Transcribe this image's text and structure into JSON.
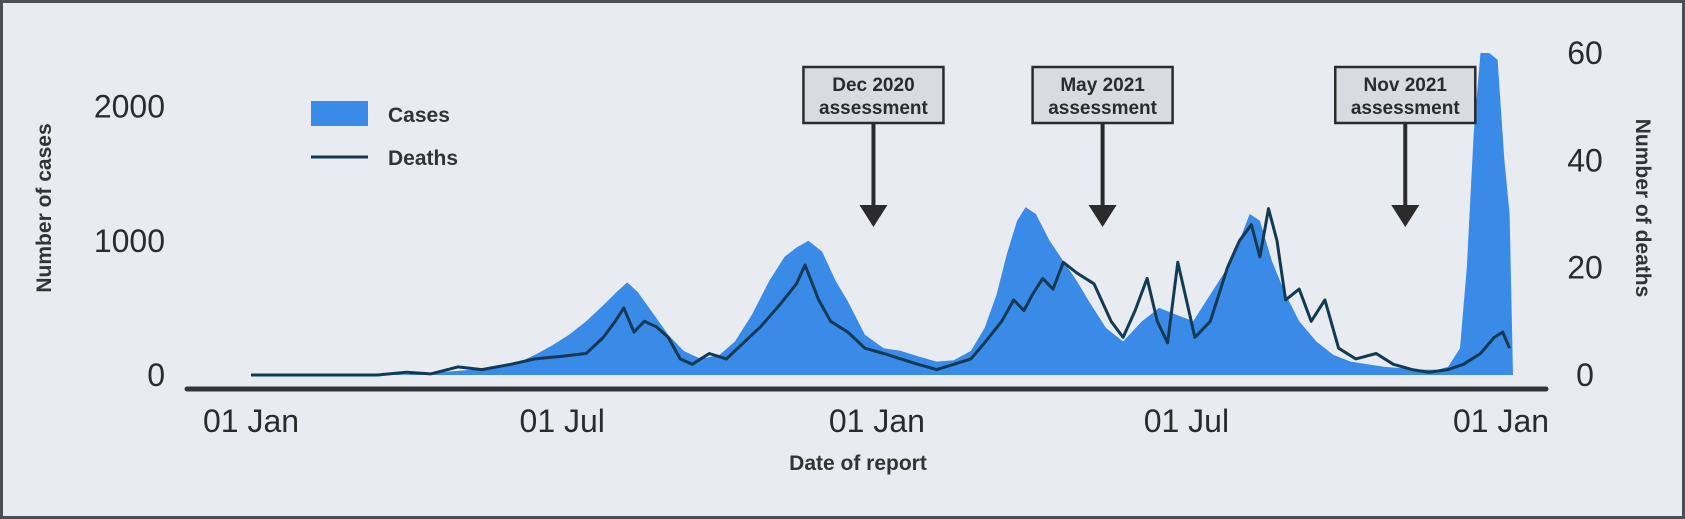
{
  "chart_data": {
    "type": "area",
    "xlabel": "Date of report",
    "ylabel": "Number of cases",
    "y2label": "Number of deaths",
    "x_range": [
      "2020-01-01",
      "2022-01-08"
    ],
    "x_ticks": [
      {
        "date": "2020-01-01",
        "label": "01 Jan"
      },
      {
        "date": "2020-07-01",
        "label": "01 Jul"
      },
      {
        "date": "2021-01-01",
        "label": "01 Jan"
      },
      {
        "date": "2021-07-01",
        "label": "01 Jul"
      },
      {
        "date": "2022-01-01",
        "label": "01 Jan"
      }
    ],
    "ylim": [
      0,
      2400
    ],
    "y_ticks": [
      0,
      1000,
      2000
    ],
    "y2lim": [
      0,
      60
    ],
    "y2_ticks": [
      0,
      20,
      40,
      60
    ],
    "grid": false,
    "legend_position": "top-left",
    "colors": {
      "cases": "#3a8ae8",
      "deaths": "#123a52",
      "annotation_box": "#d8dce0",
      "axis": "#2f3640"
    },
    "series": [
      {
        "name": "Cases",
        "axis": "left",
        "style": "area",
        "points": [
          [
            "2020-01-01",
            0
          ],
          [
            "2020-03-15",
            0
          ],
          [
            "2020-04-01",
            5
          ],
          [
            "2020-04-20",
            20
          ],
          [
            "2020-05-10",
            40
          ],
          [
            "2020-05-25",
            60
          ],
          [
            "2020-06-05",
            90
          ],
          [
            "2020-06-15",
            150
          ],
          [
            "2020-06-25",
            220
          ],
          [
            "2020-07-05",
            300
          ],
          [
            "2020-07-15",
            400
          ],
          [
            "2020-07-25",
            520
          ],
          [
            "2020-08-02",
            620
          ],
          [
            "2020-08-08",
            690
          ],
          [
            "2020-08-14",
            620
          ],
          [
            "2020-08-22",
            480
          ],
          [
            "2020-09-01",
            300
          ],
          [
            "2020-09-10",
            180
          ],
          [
            "2020-09-20",
            120
          ],
          [
            "2020-10-01",
            150
          ],
          [
            "2020-10-10",
            250
          ],
          [
            "2020-10-20",
            450
          ],
          [
            "2020-10-30",
            700
          ],
          [
            "2020-11-08",
            880
          ],
          [
            "2020-11-15",
            950
          ],
          [
            "2020-11-22",
            1000
          ],
          [
            "2020-11-30",
            920
          ],
          [
            "2020-12-08",
            700
          ],
          [
            "2020-12-15",
            550
          ],
          [
            "2020-12-25",
            300
          ],
          [
            "2021-01-05",
            200
          ],
          [
            "2021-01-15",
            180
          ],
          [
            "2021-01-25",
            140
          ],
          [
            "2021-02-05",
            100
          ],
          [
            "2021-02-15",
            110
          ],
          [
            "2021-02-25",
            180
          ],
          [
            "2021-03-05",
            350
          ],
          [
            "2021-03-12",
            600
          ],
          [
            "2021-03-18",
            900
          ],
          [
            "2021-03-24",
            1150
          ],
          [
            "2021-03-29",
            1250
          ],
          [
            "2021-04-04",
            1200
          ],
          [
            "2021-04-12",
            1000
          ],
          [
            "2021-04-20",
            850
          ],
          [
            "2021-04-28",
            700
          ],
          [
            "2021-05-05",
            550
          ],
          [
            "2021-05-15",
            350
          ],
          [
            "2021-05-25",
            250
          ],
          [
            "2021-06-05",
            400
          ],
          [
            "2021-06-15",
            500
          ],
          [
            "2021-06-25",
            450
          ],
          [
            "2021-07-05",
            400
          ],
          [
            "2021-07-15",
            600
          ],
          [
            "2021-07-25",
            800
          ],
          [
            "2021-08-01",
            1000
          ],
          [
            "2021-08-07",
            1200
          ],
          [
            "2021-08-13",
            1150
          ],
          [
            "2021-08-20",
            850
          ],
          [
            "2021-08-28",
            600
          ],
          [
            "2021-09-05",
            400
          ],
          [
            "2021-09-15",
            250
          ],
          [
            "2021-09-25",
            150
          ],
          [
            "2021-10-05",
            100
          ],
          [
            "2021-10-15",
            80
          ],
          [
            "2021-10-25",
            60
          ],
          [
            "2021-11-05",
            50
          ],
          [
            "2021-11-15",
            40
          ],
          [
            "2021-11-25",
            40
          ],
          [
            "2021-12-01",
            60
          ],
          [
            "2021-12-08",
            200
          ],
          [
            "2021-12-12",
            800
          ],
          [
            "2021-12-16",
            1800
          ],
          [
            "2021-12-20",
            2400
          ],
          [
            "2021-12-25",
            2400
          ],
          [
            "2021-12-30",
            2350
          ],
          [
            "2022-01-03",
            1600
          ],
          [
            "2022-01-06",
            1200
          ],
          [
            "2022-01-08",
            0
          ]
        ]
      },
      {
        "name": "Deaths",
        "axis": "right",
        "style": "line",
        "points": [
          [
            "2020-01-01",
            0
          ],
          [
            "2020-03-15",
            0
          ],
          [
            "2020-04-01",
            0.5
          ],
          [
            "2020-04-15",
            0.2
          ],
          [
            "2020-05-01",
            1.5
          ],
          [
            "2020-05-15",
            1
          ],
          [
            "2020-06-01",
            2
          ],
          [
            "2020-06-15",
            3
          ],
          [
            "2020-07-01",
            3.5
          ],
          [
            "2020-07-15",
            4
          ],
          [
            "2020-07-25",
            7
          ],
          [
            "2020-08-01",
            10
          ],
          [
            "2020-08-06",
            12.5
          ],
          [
            "2020-08-12",
            8
          ],
          [
            "2020-08-18",
            10
          ],
          [
            "2020-08-25",
            9
          ],
          [
            "2020-09-01",
            7
          ],
          [
            "2020-09-08",
            3
          ],
          [
            "2020-09-15",
            2
          ],
          [
            "2020-09-25",
            4
          ],
          [
            "2020-10-05",
            3
          ],
          [
            "2020-10-15",
            6
          ],
          [
            "2020-10-25",
            9
          ],
          [
            "2020-11-05",
            13
          ],
          [
            "2020-11-15",
            17
          ],
          [
            "2020-11-20",
            20.5
          ],
          [
            "2020-11-28",
            14
          ],
          [
            "2020-12-05",
            10
          ],
          [
            "2020-12-15",
            8
          ],
          [
            "2020-12-25",
            5
          ],
          [
            "2021-01-05",
            4
          ],
          [
            "2021-01-15",
            3
          ],
          [
            "2021-01-25",
            2
          ],
          [
            "2021-02-05",
            1
          ],
          [
            "2021-02-15",
            2
          ],
          [
            "2021-02-25",
            3
          ],
          [
            "2021-03-05",
            6
          ],
          [
            "2021-03-15",
            10
          ],
          [
            "2021-03-22",
            14
          ],
          [
            "2021-03-28",
            12
          ],
          [
            "2021-04-02",
            15
          ],
          [
            "2021-04-08",
            18
          ],
          [
            "2021-04-14",
            16
          ],
          [
            "2021-04-20",
            21
          ],
          [
            "2021-04-28",
            19
          ],
          [
            "2021-05-08",
            17
          ],
          [
            "2021-05-18",
            10
          ],
          [
            "2021-05-25",
            7
          ],
          [
            "2021-06-01",
            12
          ],
          [
            "2021-06-08",
            18
          ],
          [
            "2021-06-14",
            10
          ],
          [
            "2021-06-20",
            6
          ],
          [
            "2021-06-26",
            21
          ],
          [
            "2021-07-01",
            14
          ],
          [
            "2021-07-06",
            7
          ],
          [
            "2021-07-15",
            10
          ],
          [
            "2021-07-25",
            20
          ],
          [
            "2021-08-01",
            25
          ],
          [
            "2021-08-08",
            28
          ],
          [
            "2021-08-13",
            22
          ],
          [
            "2021-08-18",
            31
          ],
          [
            "2021-08-23",
            25
          ],
          [
            "2021-08-28",
            14
          ],
          [
            "2021-09-05",
            16
          ],
          [
            "2021-09-12",
            10
          ],
          [
            "2021-09-20",
            14
          ],
          [
            "2021-09-28",
            5
          ],
          [
            "2021-10-08",
            3
          ],
          [
            "2021-10-20",
            4
          ],
          [
            "2021-10-30",
            2
          ],
          [
            "2021-11-10",
            1
          ],
          [
            "2021-11-20",
            0.5
          ],
          [
            "2021-12-01",
            1
          ],
          [
            "2021-12-10",
            2
          ],
          [
            "2021-12-20",
            4
          ],
          [
            "2021-12-28",
            7
          ],
          [
            "2022-01-02",
            8
          ],
          [
            "2022-01-06",
            5
          ]
        ]
      }
    ],
    "annotations": [
      {
        "date": "2020-12-30",
        "line1": "Dec 2020",
        "line2": "assessment"
      },
      {
        "date": "2021-05-13",
        "line1": "May 2021",
        "line2": "assessment"
      },
      {
        "date": "2021-11-06",
        "line1": "Nov 2021",
        "line2": "assessment"
      }
    ]
  }
}
